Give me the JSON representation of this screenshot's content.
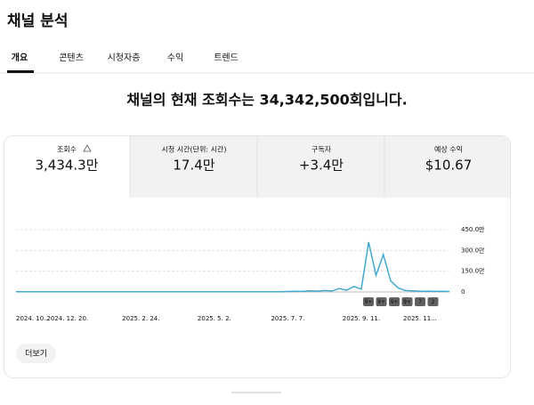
{
  "header": {
    "title": "채널 분석"
  },
  "tabs": [
    "개요",
    "콘텐츠",
    "시청자층",
    "수익",
    "트렌드"
  ],
  "headline": "채널의 현재 조회수는 34,342,500회입니다.",
  "metrics": [
    {
      "label": "조회수",
      "value": "3,434.3만"
    },
    {
      "label": "시청 시간(단위: 시간)",
      "value": "17.4만"
    },
    {
      "label": "구독자",
      "value": "+3.4만"
    },
    {
      "label": "예상 수익",
      "value": "$10.67"
    }
  ],
  "chart_data": {
    "type": "line",
    "color": "#41a9d2",
    "categories": [
      "2024. 10...",
      null,
      null,
      null,
      null,
      null,
      null,
      "2024. 12. 20.",
      null,
      null,
      null,
      null,
      null,
      null,
      null,
      null,
      null,
      "2025. 2. 24.",
      null,
      null,
      null,
      null,
      null,
      null,
      null,
      null,
      null,
      "2025. 5. 2.",
      null,
      null,
      null,
      null,
      null,
      null,
      null,
      null,
      null,
      "2025. 7. 7.",
      null,
      null,
      null,
      null,
      null,
      null,
      null,
      null,
      null,
      "2025. 9. 11.",
      null,
      null,
      null,
      null,
      null,
      null,
      null,
      "2025. 11...",
      null,
      null,
      null,
      null
    ],
    "values": [
      1,
      1,
      2,
      1,
      1,
      1,
      2,
      1,
      1,
      1,
      1,
      2,
      1,
      1,
      1,
      1,
      2,
      1,
      1,
      1,
      1,
      1,
      2,
      1,
      1,
      1,
      1,
      1,
      2,
      1,
      1,
      1,
      1,
      2,
      1,
      1,
      1,
      3,
      5,
      4,
      8,
      6,
      10,
      7,
      25,
      12,
      40,
      20,
      360,
      120,
      270,
      80,
      30,
      10,
      8,
      5,
      6,
      4,
      5,
      3
    ],
    "ylim": [
      0,
      450
    ],
    "yticks": [
      0,
      {
        "value": 150,
        "label": "150.0만"
      },
      {
        "value": 300,
        "label": "300.0만"
      },
      {
        "value": 450,
        "label": "450.0만"
      }
    ],
    "grid": true,
    "annotations": [
      "9+",
      "9+",
      "9+",
      "9+",
      "7",
      "2"
    ]
  },
  "button": "더보기"
}
